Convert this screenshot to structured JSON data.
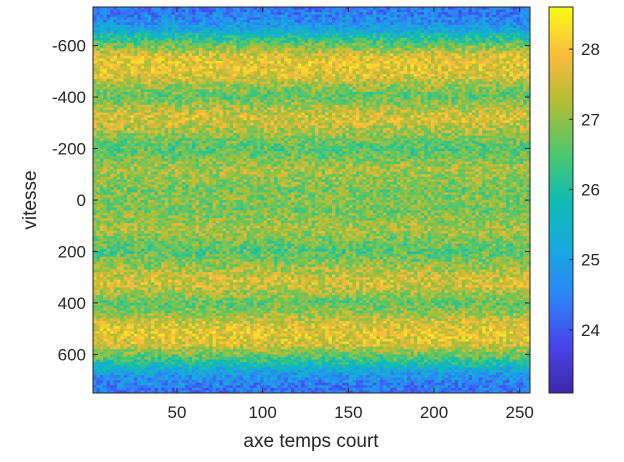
{
  "chart_data": {
    "type": "heatmap",
    "title": "",
    "xlabel": "axe temps court",
    "ylabel": "vitesse",
    "xlim": [
      1,
      256
    ],
    "ylim": [
      -750,
      750
    ],
    "y_direction": "reversed",
    "x_ticks": [
      50,
      100,
      150,
      200,
      250
    ],
    "y_ticks": [
      -600,
      -400,
      -200,
      0,
      200,
      400,
      600
    ],
    "colormap": "parula",
    "colorbar": {
      "clim": [
        23.1,
        28.6
      ],
      "ticks": [
        24,
        25,
        26,
        27,
        28
      ],
      "placement": "right"
    },
    "row_profile": {
      "description_units": "vitesse vs mean value",
      "vitesse": [
        -750,
        -700,
        -660,
        -640,
        -600,
        -560,
        -520,
        -480,
        -440,
        -400,
        -360,
        -320,
        -280,
        -240,
        -200,
        -160,
        -120,
        -80,
        -40,
        0,
        40,
        80,
        120,
        160,
        200,
        240,
        280,
        320,
        360,
        400,
        440,
        480,
        520,
        560,
        600,
        640,
        660,
        700,
        750
      ],
      "value": [
        24.3,
        24.6,
        25.2,
        25.8,
        26.8,
        27.6,
        27.8,
        27.6,
        27.0,
        26.6,
        27.2,
        27.6,
        27.3,
        26.9,
        26.5,
        26.8,
        27.2,
        27.0,
        26.8,
        26.9,
        26.8,
        27.0,
        27.2,
        26.8,
        26.5,
        26.9,
        27.3,
        27.6,
        27.2,
        26.6,
        27.0,
        27.6,
        27.8,
        27.6,
        26.8,
        25.8,
        25.2,
        24.6,
        24.3
      ]
    }
  }
}
